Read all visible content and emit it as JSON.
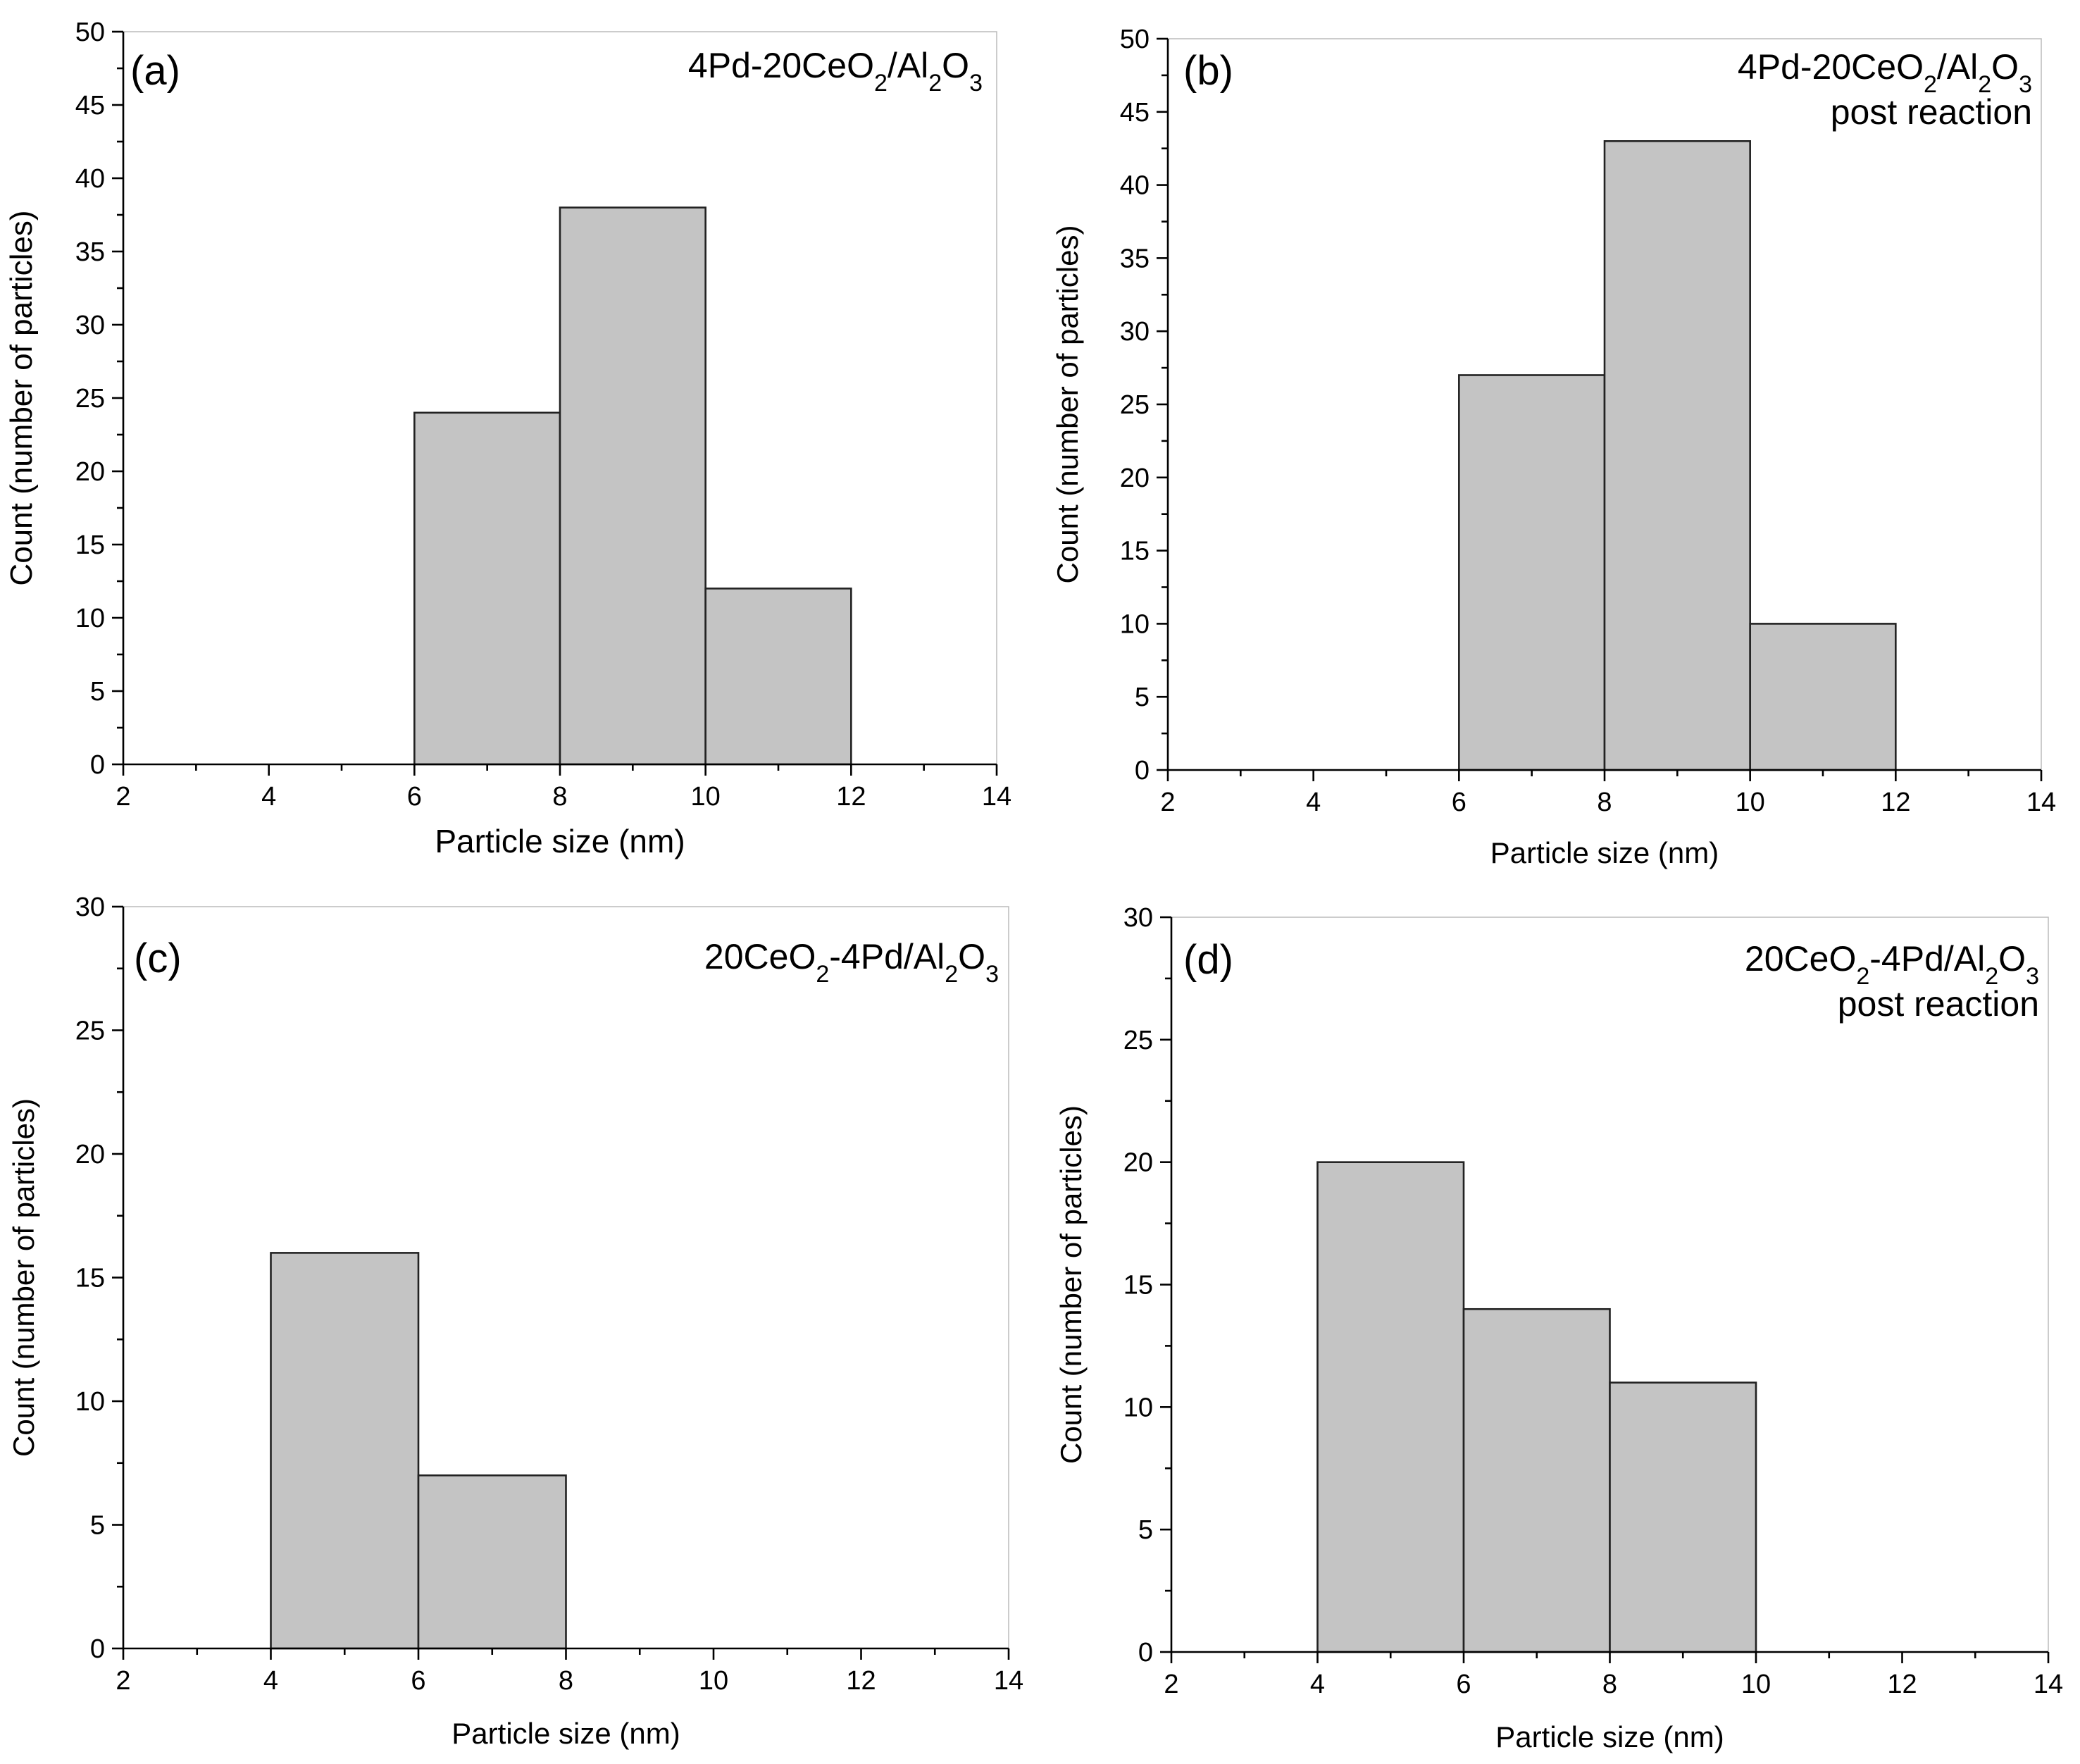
{
  "chart_data": [
    {
      "type": "bar",
      "panel": "(a)",
      "sample_lines": [
        "4Pd-20CeO2/Al2O3"
      ],
      "xlabel": "Particle size (nm)",
      "ylabel": "Count (number of particles)",
      "xlim": [
        2,
        14
      ],
      "ylim": [
        0,
        50
      ],
      "xticks": [
        2,
        4,
        6,
        8,
        10,
        12,
        14
      ],
      "yticks": [
        0,
        5,
        10,
        15,
        20,
        25,
        30,
        35,
        40,
        45,
        50
      ],
      "bins": [
        {
          "from": 6,
          "to": 8,
          "count": 24
        },
        {
          "from": 8,
          "to": 10,
          "count": 38
        },
        {
          "from": 10,
          "to": 12,
          "count": 12
        }
      ]
    },
    {
      "type": "bar",
      "panel": "(b)",
      "sample_lines": [
        "4Pd-20CeO2/Al2O3",
        "post reaction"
      ],
      "xlabel": "Particle size (nm)",
      "ylabel": "Count (number of particles)",
      "xlim": [
        2,
        14
      ],
      "ylim": [
        0,
        50
      ],
      "xticks": [
        2,
        4,
        6,
        8,
        10,
        12,
        14
      ],
      "yticks": [
        0,
        5,
        10,
        15,
        20,
        25,
        30,
        35,
        40,
        45,
        50
      ],
      "bins": [
        {
          "from": 6,
          "to": 8,
          "count": 27
        },
        {
          "from": 8,
          "to": 10,
          "count": 43
        },
        {
          "from": 10,
          "to": 12,
          "count": 10
        }
      ]
    },
    {
      "type": "bar",
      "panel": "(c)",
      "sample_lines": [
        "20CeO2-4Pd/Al2O3"
      ],
      "xlabel": "Particle size (nm)",
      "ylabel": "Count (number of particles)",
      "xlim": [
        2,
        14
      ],
      "ylim": [
        0,
        30
      ],
      "xticks": [
        2,
        4,
        6,
        8,
        10,
        12,
        14
      ],
      "yticks": [
        0,
        5,
        10,
        15,
        20,
        25,
        30
      ],
      "bins": [
        {
          "from": 4,
          "to": 6,
          "count": 16
        },
        {
          "from": 6,
          "to": 8,
          "count": 7
        }
      ]
    },
    {
      "type": "bar",
      "panel": "(d)",
      "sample_lines": [
        "20CeO2-4Pd/Al2O3",
        "post reaction"
      ],
      "xlabel": "Particle size (nm)",
      "ylabel": "Count (number of particles)",
      "xlim": [
        2,
        14
      ],
      "ylim": [
        0,
        30
      ],
      "xticks": [
        2,
        4,
        6,
        8,
        10,
        12,
        14
      ],
      "yticks": [
        0,
        5,
        10,
        15,
        20,
        25,
        30
      ],
      "bins": [
        {
          "from": 4,
          "to": 6,
          "count": 20
        },
        {
          "from": 6,
          "to": 8,
          "count": 14
        },
        {
          "from": 8,
          "to": 10,
          "count": 11
        }
      ]
    }
  ]
}
